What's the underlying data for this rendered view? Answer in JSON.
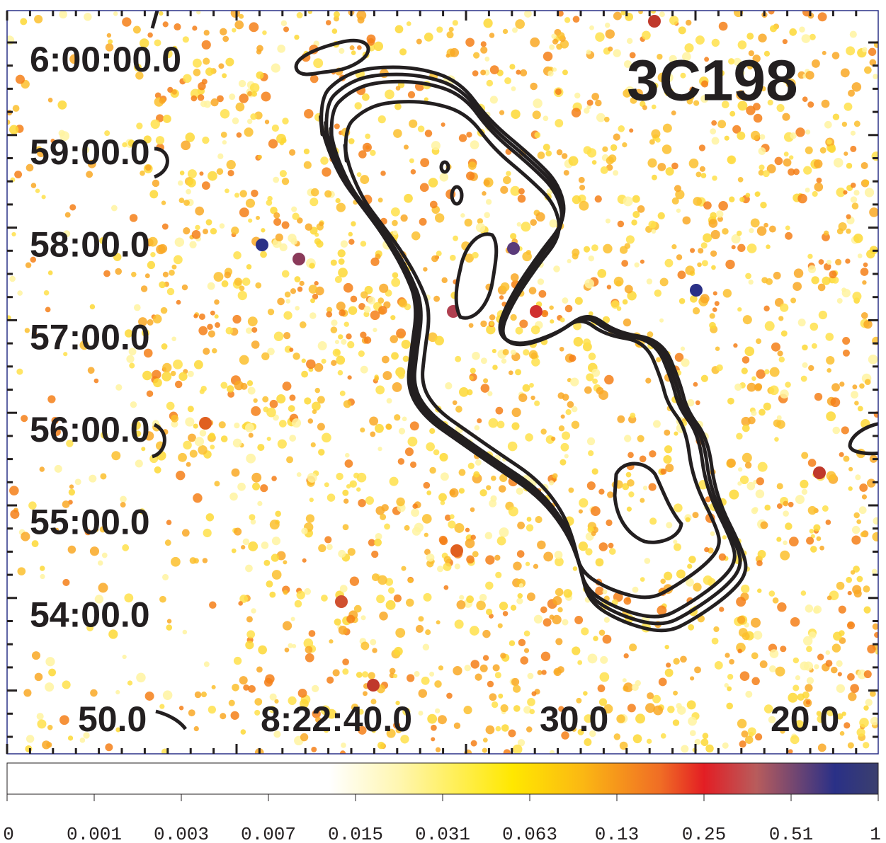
{
  "image": {
    "title": "3C198",
    "dec_labels": [
      "6:00:00.0",
      "59:00.0",
      "58:00.0",
      "57:00.0",
      "56:00.0",
      "55:00.0",
      "54:00.0"
    ],
    "ra_labels": [
      "50.0",
      "8:22:40.0",
      "30.0",
      "20.0"
    ]
  },
  "colorbar": {
    "labels": [
      "0",
      "0.001",
      "0.003",
      "0.007",
      "0.015",
      "0.031",
      "0.063",
      "0.13",
      "0.25",
      "0.51",
      "1"
    ]
  }
}
